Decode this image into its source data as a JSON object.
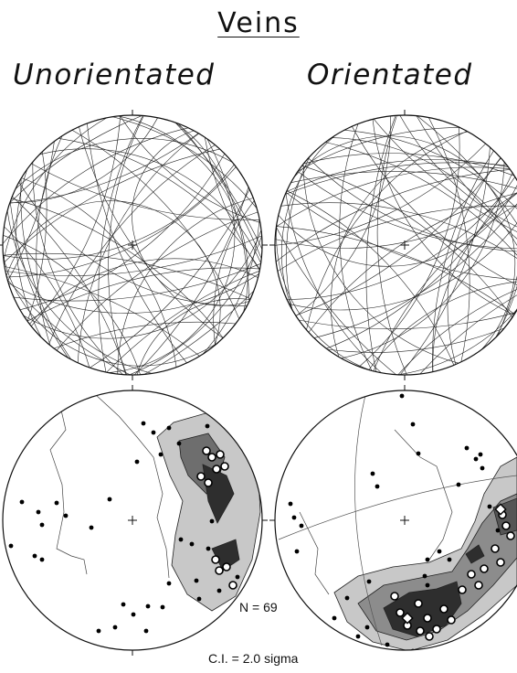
{
  "title": "Veins",
  "columns": {
    "left": "Unorientated",
    "right": "Orientated"
  },
  "stats": {
    "n": "N =  69",
    "ci": "C.I. = 2.0 sigma"
  },
  "colors": {
    "outline": "#111111",
    "contour_light": "#c8c8c8",
    "contour_mid": "#8c8c8c",
    "contour_dark": "#2e2e2e",
    "pole": "#000000"
  }
}
